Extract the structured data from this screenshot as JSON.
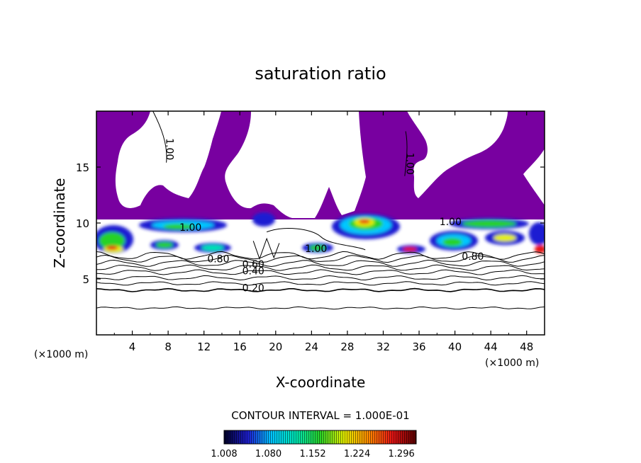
{
  "chart_data": {
    "type": "heatmap",
    "title": "saturation ratio",
    "xlabel": "X-coordinate",
    "ylabel": "Z-coordinate",
    "x_unit": "(×1000 m)",
    "z_unit": "(×1000 m)",
    "xlim": [
      0,
      50
    ],
    "ylim": [
      0,
      20
    ],
    "x_ticks": [
      4,
      8,
      12,
      16,
      20,
      24,
      28,
      32,
      36,
      40,
      44,
      48
    ],
    "y_ticks": [
      5,
      10,
      15
    ],
    "contour_interval_text": "CONTOUR INTERVAL = 1.000E-01",
    "contour_labels": [
      {
        "text": "0.20",
        "x": 17.5,
        "z": 3.9
      },
      {
        "text": "0.40",
        "x": 17.5,
        "z": 5.4
      },
      {
        "text": "0.60",
        "x": 17.5,
        "z": 6.0
      },
      {
        "text": "0.80",
        "x": 13.6,
        "z": 6.5
      },
      {
        "text": "0.80",
        "x": 42.0,
        "z": 6.7
      },
      {
        "text": "1.00",
        "x": 10.5,
        "z": 9.3
      },
      {
        "text": "1.00",
        "x": 24.5,
        "z": 7.4
      },
      {
        "text": "1.00",
        "x": 39.5,
        "z": 9.8
      },
      {
        "text": "1.00",
        "x": 7.8,
        "z": 16.6,
        "rotated": true
      },
      {
        "text": "1.00",
        "x": 34.6,
        "z": 15.3,
        "rotated": true
      }
    ],
    "colorbar": {
      "min": 1.008,
      "max": 1.32,
      "tick_labels": [
        "1.008",
        "1.080",
        "1.152",
        "1.224",
        "1.296"
      ],
      "colors": [
        "#000028",
        "#1e1ed2",
        "#00c8ff",
        "#00e6b4",
        "#28d228",
        "#e6f000",
        "#ff8c00",
        "#e61414",
        "#5a0000"
      ]
    },
    "region_colors": {
      "subsaturated_fill": "#ffffff",
      "upper_fill": "#7800a0"
    }
  }
}
